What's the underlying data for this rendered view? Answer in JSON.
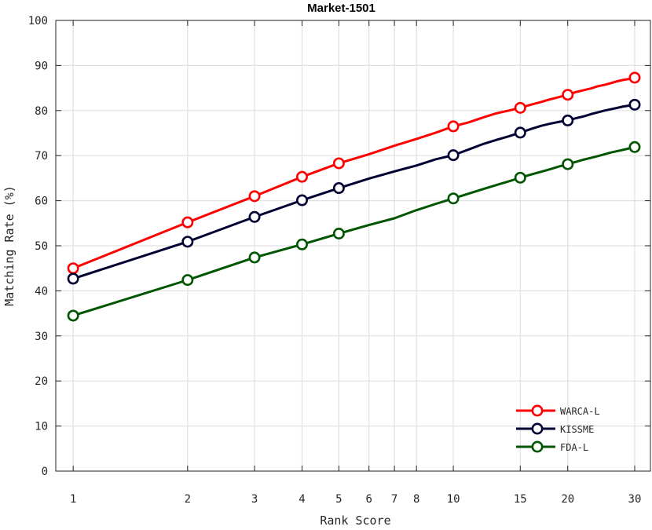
{
  "chart_data": {
    "type": "line",
    "title": "Market-1501",
    "xlabel": "Rank Score",
    "ylabel": "Matching Rate (%)",
    "xscale": "log",
    "xlim": [
      0.9,
      33
    ],
    "ylim": [
      0,
      100
    ],
    "xticks": [
      1,
      2,
      3,
      4,
      5,
      6,
      7,
      8,
      10,
      15,
      20,
      30
    ],
    "yticks": [
      0,
      10,
      20,
      30,
      40,
      50,
      60,
      70,
      80,
      90,
      100
    ],
    "grid": true,
    "legend_position": "bottom-right",
    "series": [
      {
        "name": "WARCA-L",
        "color": "#ff0000",
        "x": [
          1,
          2,
          3,
          4,
          5,
          6,
          7,
          8,
          9,
          10,
          11,
          12,
          13,
          14,
          15,
          16,
          17,
          18,
          19,
          20,
          21,
          22,
          23,
          24,
          25,
          26,
          27,
          28,
          29,
          30
        ],
        "y": [
          45.0,
          55.2,
          61.0,
          65.3,
          68.3,
          70.3,
          72.2,
          73.7,
          75.1,
          76.5,
          77.4,
          78.5,
          79.4,
          80.0,
          80.6,
          81.3,
          81.9,
          82.5,
          83.0,
          83.5,
          84.1,
          84.5,
          84.9,
          85.4,
          85.7,
          86.1,
          86.5,
          86.8,
          87.0,
          87.3
        ],
        "markers": [
          1,
          2,
          3,
          4,
          5,
          10,
          15,
          20,
          30
        ]
      },
      {
        "name": "KISSME",
        "color": "#000033",
        "x": [
          1,
          2,
          3,
          4,
          5,
          6,
          7,
          8,
          9,
          10,
          11,
          12,
          13,
          14,
          15,
          16,
          17,
          18,
          19,
          20,
          21,
          22,
          23,
          24,
          25,
          26,
          27,
          28,
          29,
          30
        ],
        "y": [
          42.7,
          50.9,
          56.4,
          60.1,
          62.8,
          64.9,
          66.5,
          67.8,
          69.2,
          70.1,
          71.4,
          72.6,
          73.5,
          74.3,
          75.1,
          75.9,
          76.6,
          77.1,
          77.5,
          77.8,
          78.3,
          78.7,
          79.2,
          79.6,
          80.0,
          80.3,
          80.6,
          80.9,
          81.1,
          81.3
        ],
        "markers": [
          1,
          2,
          3,
          4,
          5,
          10,
          15,
          20,
          30
        ]
      },
      {
        "name": "FDA-L",
        "color": "#005500",
        "x": [
          1,
          2,
          3,
          4,
          5,
          6,
          7,
          8,
          9,
          10,
          11,
          12,
          13,
          14,
          15,
          16,
          17,
          18,
          19,
          20,
          21,
          22,
          23,
          24,
          25,
          26,
          27,
          28,
          29,
          30
        ],
        "y": [
          34.5,
          42.4,
          47.4,
          50.3,
          52.7,
          54.6,
          56.1,
          57.9,
          59.3,
          60.5,
          61.6,
          62.6,
          63.5,
          64.3,
          65.1,
          65.8,
          66.4,
          67.0,
          67.6,
          68.1,
          68.6,
          69.1,
          69.5,
          69.9,
          70.3,
          70.7,
          71.0,
          71.3,
          71.6,
          71.9
        ],
        "markers": [
          1,
          2,
          3,
          4,
          5,
          10,
          15,
          20,
          30
        ]
      }
    ]
  }
}
